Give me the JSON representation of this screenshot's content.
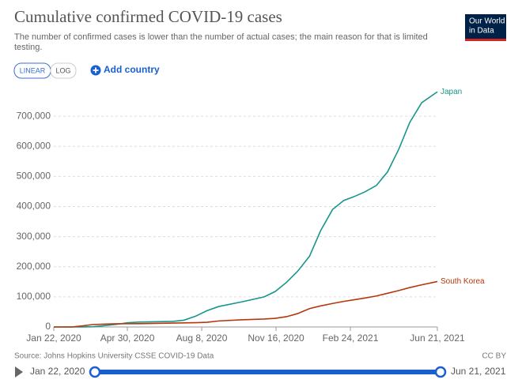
{
  "chart_data": {
    "type": "line",
    "title": "Cumulative confirmed COVID-19 cases",
    "subtitle": [
      "The number of confirmed cases is lower than the number of actual cases; the main reason for that is limited",
      "testing."
    ],
    "logo": [
      "Our World",
      "in Data"
    ],
    "scale_buttons": [
      "LINEAR",
      "LOG"
    ],
    "add_country": "Add country",
    "source": "Source: Johns Hopkins University CSSE COVID-19 Data",
    "license": "CC BY",
    "timeline": [
      "Jan 22, 2020",
      "Jun 21, 2021"
    ],
    "x": [
      "2020-01-22",
      "2020-02-15",
      "2020-03-01",
      "2020-03-15",
      "2020-04-15",
      "2020-04-30",
      "2020-05-15",
      "2020-06-30",
      "2020-07-15",
      "2020-07-31",
      "2020-08-15",
      "2020-08-31",
      "2020-09-30",
      "2020-10-31",
      "2020-11-15",
      "2020-11-30",
      "2020-12-15",
      "2020-12-31",
      "2021-01-15",
      "2021-01-31",
      "2021-02-15",
      "2021-02-28",
      "2021-03-15",
      "2021-03-31",
      "2021-04-15",
      "2021-04-30",
      "2021-05-15",
      "2021-05-31",
      "2021-06-21"
    ],
    "series": [
      {
        "name": "Japan",
        "color": "#18968b",
        "values": [
          0,
          60,
          250,
          800,
          8500,
          14000,
          16200,
          18500,
          22500,
          36000,
          54000,
          68000,
          83000,
          100000,
          118000,
          148000,
          185000,
          235000,
          320000,
          390000,
          420000,
          432000,
          448000,
          470000,
          515000,
          590000,
          680000,
          745000,
          781000
        ]
      },
      {
        "name": "South Korea",
        "color": "#b8360d",
        "values": [
          0,
          28,
          3700,
          8200,
          10600,
          10800,
          11000,
          12900,
          13600,
          14300,
          15500,
          20000,
          23800,
          26500,
          28700,
          34200,
          44400,
          61000,
          70000,
          78000,
          84900,
          90000,
          96000,
          103000,
          112000,
          121000,
          131000,
          140000,
          151000
        ]
      }
    ],
    "xlim": [
      "2020-01-22",
      "2021-06-21"
    ],
    "xticks": [
      {
        "value": "2020-01-22",
        "label": "Jan 22, 2020"
      },
      {
        "value": "2020-04-30",
        "label": "Apr 30, 2020"
      },
      {
        "value": "2020-08-08",
        "label": "Aug 8, 2020"
      },
      {
        "value": "2020-11-16",
        "label": "Nov 16, 2020"
      },
      {
        "value": "2021-02-24",
        "label": "Feb 24, 2021"
      },
      {
        "value": "2021-06-21",
        "label": "Jun 21, 2021"
      }
    ],
    "ylim": [
      0,
      800000
    ],
    "yticks": [
      0,
      {
        "value": 100000,
        "label": "100,000"
      },
      {
        "value": 200000,
        "label": "200,000"
      },
      {
        "value": 300000,
        "label": "300,000"
      },
      {
        "value": 400000,
        "label": "400,000"
      },
      {
        "value": 500000,
        "label": "500,000"
      },
      {
        "value": 600000,
        "label": "600,000"
      },
      {
        "value": 700000,
        "label": "700,000"
      }
    ],
    "grid": true
  }
}
